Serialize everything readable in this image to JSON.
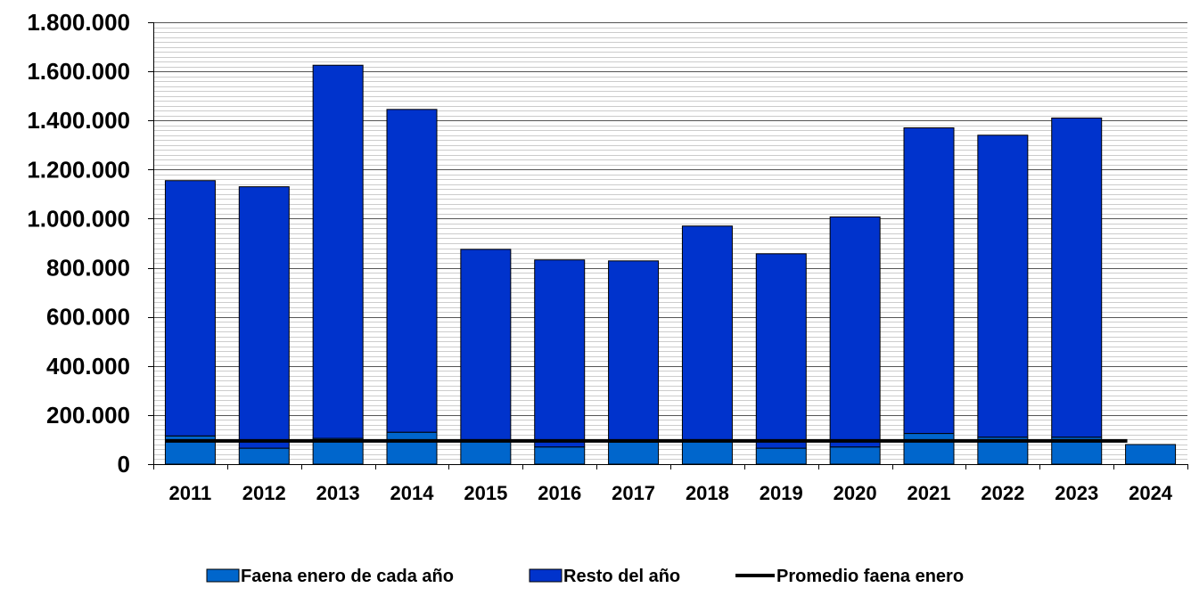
{
  "chart_data": {
    "type": "bar",
    "stacked": true,
    "title": "",
    "xlabel": "",
    "ylabel": "",
    "categories": [
      "2011",
      "2012",
      "2013",
      "2014",
      "2015",
      "2016",
      "2017",
      "2018",
      "2019",
      "2020",
      "2021",
      "2022",
      "2023",
      "2024"
    ],
    "series": [
      {
        "name": "Faena enero de cada año",
        "color": "#0066CC",
        "values": [
          115000,
          65000,
          105000,
          130000,
          100000,
          70000,
          90000,
          100000,
          65000,
          70000,
          125000,
          110000,
          110000,
          80000
        ]
      },
      {
        "name": "Resto del año",
        "color": "#0033CC",
        "values": [
          1040000,
          1065000,
          1520000,
          1315000,
          775000,
          762000,
          738000,
          870000,
          792000,
          937000,
          1245000,
          1230000,
          1300000,
          0
        ]
      }
    ],
    "reference_line": {
      "name": "Promedio faena enero",
      "value": 95000,
      "color": "#000000"
    },
    "ylim": [
      0,
      1800000
    ],
    "ytick_values": [
      0,
      200000,
      400000,
      600000,
      800000,
      1000000,
      1200000,
      1400000,
      1600000,
      1800000
    ],
    "ytick_labels": [
      "0",
      "200.000",
      "400.000",
      "600.000",
      "800.000",
      "1.000.000",
      "1.200.000",
      "1.400.000",
      "1.600.000",
      "1.800.000"
    ],
    "grid": true,
    "legend_position": "bottom"
  }
}
